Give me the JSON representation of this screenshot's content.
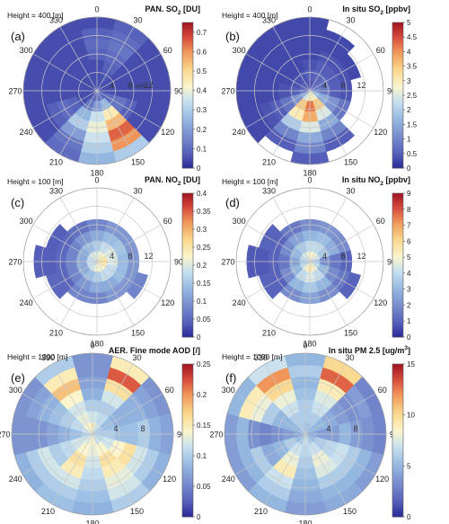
{
  "chart_data": [
    {
      "panel": "(a)",
      "type": "polar-contour",
      "height_label": "Height = 400 [m]",
      "colorbar": {
        "title_main": "PAN. SO",
        "title_sub": "2",
        "title_unit": " [DU]",
        "ticks": [
          0,
          0.1,
          0.2,
          0.3,
          0.4,
          0.5,
          0.6,
          0.7
        ],
        "max": 0.75
      },
      "angle_ticks": [
        0,
        30,
        60,
        90,
        120,
        150,
        180,
        210,
        240,
        270,
        300,
        330
      ],
      "radius_ticks": [
        "4",
        "8",
        "12"
      ],
      "radius_unit": "m/s",
      "radial_max": 14,
      "field": [
        {
          "theta": 0,
          "r": [
            0.05,
            0.05,
            0.05,
            0.08,
            0.1,
            0.08,
            0.05
          ]
        },
        {
          "theta": 30,
          "r": [
            0.05,
            0.06,
            0.08,
            0.1,
            0.12,
            0.1,
            0.08
          ]
        },
        {
          "theta": 60,
          "r": [
            0.05,
            0.05,
            0.05,
            0.05,
            0.05,
            0.05,
            0.05
          ]
        },
        {
          "theta": 90,
          "r": [
            0.05,
            0.05,
            0.05,
            0.05,
            0.05,
            0.05,
            0.05
          ]
        },
        {
          "theta": 120,
          "r": [
            0.08,
            0.1,
            0.12,
            0.08,
            0.05,
            0.05,
            0.05
          ]
        },
        {
          "theta": 150,
          "r": [
            0.1,
            0.25,
            0.45,
            0.55,
            0.65,
            0.6,
            0.3
          ]
        },
        {
          "theta": 180,
          "r": [
            0.12,
            0.2,
            0.35,
            0.4,
            0.35,
            0.3,
            0.25
          ]
        },
        {
          "theta": 210,
          "r": [
            0.08,
            0.12,
            0.25,
            0.3,
            0.2,
            0.12,
            0.1
          ]
        },
        {
          "theta": 240,
          "r": [
            0.05,
            0.05,
            0.08,
            0.1,
            0.08,
            0.05,
            0.05
          ]
        },
        {
          "theta": 270,
          "r": [
            0.05,
            0.05,
            0.05,
            0.05,
            0.05,
            0.05,
            0.05
          ]
        },
        {
          "theta": 300,
          "r": [
            0.05,
            0.05,
            0.05,
            0.05,
            0.05,
            0.05,
            0.05
          ]
        },
        {
          "theta": 330,
          "r": [
            0.05,
            0.05,
            0.05,
            0.05,
            0.05,
            0.05,
            0.05
          ]
        }
      ]
    },
    {
      "panel": "(b)",
      "type": "polar-contour",
      "height_label": "Height = 400 [m]",
      "colorbar": {
        "title_main": "In situ SO",
        "title_sub": "2",
        "title_unit": " [ppbv]",
        "ticks": [
          0,
          0.5,
          1,
          1.5,
          2,
          2.5,
          3,
          3.5,
          4,
          4.5,
          5
        ],
        "max": 5
      },
      "angle_ticks": [
        0,
        30,
        60,
        90,
        120,
        150,
        180,
        210,
        240,
        270,
        300,
        330
      ],
      "radius_ticks": [
        "4",
        "8",
        "12"
      ],
      "radius_unit": "",
      "radial_max": 14,
      "field": [
        {
          "theta": 0,
          "r": [
            0.4,
            0.5,
            0.4,
            0.3,
            0.3,
            0.3,
            0.3
          ]
        },
        {
          "theta": 30,
          "r": [
            0.5,
            0.6,
            0.5,
            0.4,
            0.3,
            0.3,
            null
          ]
        },
        {
          "theta": 60,
          "r": [
            0.8,
            0.7,
            0.5,
            0.4,
            0.3,
            null,
            null
          ]
        },
        {
          "theta": 90,
          "r": [
            1.0,
            0.8,
            0.5,
            0.4,
            null,
            null,
            null
          ]
        },
        {
          "theta": 120,
          "r": [
            1.8,
            1.5,
            1.2,
            0.8,
            null,
            null,
            null
          ]
        },
        {
          "theta": 150,
          "r": [
            2.8,
            3.5,
            2.5,
            1.5,
            1.0,
            0.5,
            null
          ]
        },
        {
          "theta": 180,
          "r": [
            3.0,
            4.2,
            3.8,
            2.5,
            1.5,
            1.0,
            0.5
          ]
        },
        {
          "theta": 210,
          "r": [
            2.5,
            3.5,
            3.0,
            2.0,
            1.0,
            0.5,
            null
          ]
        },
        {
          "theta": 240,
          "r": [
            1.5,
            1.2,
            0.8,
            0.5,
            0.4,
            0.3,
            0.3
          ]
        },
        {
          "theta": 270,
          "r": [
            0.8,
            0.5,
            0.4,
            0.3,
            0.3,
            0.3,
            0.3
          ]
        },
        {
          "theta": 300,
          "r": [
            0.6,
            0.4,
            0.3,
            0.3,
            0.3,
            0.3,
            0.3
          ]
        },
        {
          "theta": 330,
          "r": [
            0.5,
            0.4,
            0.3,
            0.3,
            0.3,
            0.3,
            0.3
          ]
        }
      ]
    },
    {
      "panel": "(c)",
      "type": "polar-contour",
      "height_label": "Height = 100 [m]",
      "colorbar": {
        "title_main": "PAN. NO",
        "title_sub": "2",
        "title_unit": " [DU]",
        "ticks": [
          0,
          0.05,
          0.1,
          0.15,
          0.2,
          0.25,
          0.3,
          0.35,
          0.4
        ],
        "max": 0.4
      },
      "angle_ticks": [
        0,
        30,
        60,
        90,
        120,
        150,
        180,
        210,
        240,
        270,
        300,
        330
      ],
      "radius_ticks": [
        "4",
        "8",
        "12"
      ],
      "radius_unit": "",
      "radial_max": 14,
      "field": [
        {
          "theta": 0,
          "r": [
            0.2,
            0.16,
            0.12,
            0.08,
            null,
            null,
            null
          ]
        },
        {
          "theta": 30,
          "r": [
            0.22,
            0.18,
            0.14,
            0.1,
            null,
            null,
            null
          ]
        },
        {
          "theta": 60,
          "r": [
            0.24,
            0.2,
            0.15,
            0.1,
            null,
            null,
            null
          ]
        },
        {
          "theta": 90,
          "r": [
            0.26,
            0.2,
            0.14,
            0.1,
            null,
            null,
            null
          ]
        },
        {
          "theta": 120,
          "r": [
            0.24,
            0.18,
            0.14,
            0.1,
            0.08,
            null,
            null
          ]
        },
        {
          "theta": 150,
          "r": [
            0.22,
            0.18,
            0.12,
            0.1,
            null,
            null,
            null
          ]
        },
        {
          "theta": 180,
          "r": [
            0.22,
            0.16,
            0.12,
            0.08,
            null,
            null,
            null
          ]
        },
        {
          "theta": 210,
          "r": [
            0.2,
            0.14,
            0.1,
            0.08,
            null,
            null,
            null
          ]
        },
        {
          "theta": 240,
          "r": [
            0.18,
            0.12,
            0.08,
            0.05,
            0.05,
            null,
            null
          ]
        },
        {
          "theta": 270,
          "r": [
            0.18,
            0.12,
            0.08,
            0.05,
            0.04,
            0.04,
            null
          ]
        },
        {
          "theta": 300,
          "r": [
            0.18,
            0.12,
            0.08,
            0.05,
            0.04,
            null,
            null
          ]
        },
        {
          "theta": 330,
          "r": [
            0.2,
            0.14,
            0.1,
            0.06,
            null,
            null,
            null
          ]
        }
      ]
    },
    {
      "panel": "(d)",
      "type": "polar-contour",
      "height_label": "Height = 100 [m]",
      "colorbar": {
        "title_main": "In situ NO",
        "title_sub": "2",
        "title_unit": " [ppbv]",
        "ticks": [
          0,
          1,
          2,
          3,
          4,
          5,
          6,
          7,
          8,
          9
        ],
        "max": 9
      },
      "angle_ticks": [
        0,
        30,
        60,
        90,
        120,
        150,
        180,
        210,
        240,
        270,
        300,
        330
      ],
      "radius_ticks": [
        "4",
        "8",
        "12"
      ],
      "radius_unit": "",
      "radial_max": 14,
      "field": [
        {
          "theta": 0,
          "r": [
            5.0,
            4.0,
            3.0,
            2.0,
            null,
            null,
            null
          ]
        },
        {
          "theta": 30,
          "r": [
            5.0,
            4.0,
            3.2,
            2.2,
            null,
            null,
            null
          ]
        },
        {
          "theta": 60,
          "r": [
            4.5,
            3.5,
            2.8,
            2.0,
            null,
            null,
            null
          ]
        },
        {
          "theta": 90,
          "r": [
            3.5,
            2.0,
            1.5,
            1.0,
            null,
            null,
            null
          ]
        },
        {
          "theta": 120,
          "r": [
            4.0,
            3.0,
            2.0,
            1.5,
            1.0,
            null,
            null
          ]
        },
        {
          "theta": 150,
          "r": [
            5.0,
            4.0,
            3.0,
            2.0,
            null,
            null,
            null
          ]
        },
        {
          "theta": 180,
          "r": [
            5.5,
            4.5,
            3.5,
            2.5,
            null,
            null,
            null
          ]
        },
        {
          "theta": 210,
          "r": [
            5.0,
            4.0,
            3.0,
            2.0,
            null,
            null,
            null
          ]
        },
        {
          "theta": 240,
          "r": [
            4.0,
            3.0,
            2.0,
            1.0,
            1.0,
            null,
            null
          ]
        },
        {
          "theta": 270,
          "r": [
            3.5,
            2.5,
            1.5,
            1.0,
            0.8,
            0.8,
            null
          ]
        },
        {
          "theta": 300,
          "r": [
            4.0,
            3.0,
            2.0,
            1.0,
            1.0,
            null,
            null
          ]
        },
        {
          "theta": 330,
          "r": [
            4.5,
            3.5,
            2.5,
            1.5,
            null,
            null,
            null
          ]
        }
      ]
    },
    {
      "panel": "(e)",
      "type": "polar-contour",
      "height_label": "Height = 1000 [m]",
      "colorbar": {
        "title_main": "AER. Fine mode AOD [/]",
        "title_sub": "",
        "title_unit": "",
        "ticks": [
          0,
          0.05,
          0.1,
          0.15,
          0.2,
          0.25
        ],
        "max": 0.25
      },
      "angle_ticks": [
        0,
        30,
        60,
        90,
        120,
        150,
        180,
        210,
        240,
        270,
        300,
        330
      ],
      "radius_ticks": [
        "4",
        "8"
      ],
      "radius_unit": "",
      "radial_max": 12,
      "field": [
        {
          "theta": 0,
          "r": [
            0.15,
            0.12,
            0.1,
            0.08,
            0.07,
            0.06,
            0.06
          ]
        },
        {
          "theta": 30,
          "r": [
            0.12,
            0.11,
            0.1,
            0.12,
            0.16,
            0.22,
            0.15
          ]
        },
        {
          "theta": 60,
          "r": [
            0.1,
            0.09,
            0.08,
            0.08,
            0.08,
            0.07,
            0.06
          ]
        },
        {
          "theta": 90,
          "r": [
            0.1,
            0.1,
            0.09,
            0.09,
            0.1,
            0.08,
            0.07
          ]
        },
        {
          "theta": 120,
          "r": [
            0.11,
            0.12,
            0.14,
            0.16,
            0.12,
            0.1,
            0.08
          ]
        },
        {
          "theta": 150,
          "r": [
            0.12,
            0.14,
            0.16,
            0.15,
            0.13,
            0.12,
            0.1
          ]
        },
        {
          "theta": 180,
          "r": [
            0.14,
            0.13,
            0.12,
            0.11,
            0.1,
            0.09,
            0.08
          ]
        },
        {
          "theta": 210,
          "r": [
            0.13,
            0.14,
            0.16,
            0.15,
            0.12,
            0.1,
            0.09
          ]
        },
        {
          "theta": 240,
          "r": [
            0.12,
            0.12,
            0.11,
            0.1,
            0.12,
            0.1,
            0.08
          ]
        },
        {
          "theta": 270,
          "r": [
            0.1,
            0.09,
            0.08,
            0.07,
            0.06,
            0.06,
            0.06
          ]
        },
        {
          "theta": 300,
          "r": [
            0.12,
            0.11,
            0.1,
            0.09,
            0.08,
            0.07,
            0.06
          ]
        },
        {
          "theta": 330,
          "r": [
            0.14,
            0.13,
            0.12,
            0.14,
            0.18,
            0.15,
            0.1
          ]
        }
      ]
    },
    {
      "panel": "(f)",
      "type": "polar-contour",
      "height_label": "Height = 1000 [m]",
      "colorbar": {
        "title_main": "In situ PM 2.5 [ug/m",
        "title_sub": "3",
        "title_unit": "]",
        "sub_is_sup": true,
        "ticks": [
          0,
          5,
          10,
          15
        ],
        "max": 15
      },
      "angle_ticks": [
        0,
        30,
        60,
        90,
        120,
        150,
        180,
        210,
        240,
        270,
        300,
        330
      ],
      "radius_ticks": [
        "4",
        "8"
      ],
      "radius_unit": "",
      "radial_max": 12,
      "field": [
        {
          "theta": 0,
          "r": [
            5.5,
            6.0,
            6.0,
            5.5,
            5.0,
            6.0,
            5.0
          ]
        },
        {
          "theta": 30,
          "r": [
            5.5,
            6.0,
            7.0,
            7.5,
            9.0,
            13.0,
            10.0
          ]
        },
        {
          "theta": 60,
          "r": [
            5.0,
            5.0,
            4.5,
            4.0,
            3.5,
            4.0,
            3.0
          ]
        },
        {
          "theta": 90,
          "r": [
            4.5,
            4.0,
            4.0,
            5.0,
            4.0,
            3.5,
            3.0
          ]
        },
        {
          "theta": 120,
          "r": [
            5.0,
            6.0,
            6.5,
            7.0,
            6.0,
            5.0,
            4.0
          ]
        },
        {
          "theta": 150,
          "r": [
            6.0,
            7.0,
            8.0,
            7.5,
            6.0,
            5.0,
            4.5
          ]
        },
        {
          "theta": 180,
          "r": [
            7.0,
            6.5,
            6.0,
            5.5,
            5.0,
            4.5,
            4.0
          ]
        },
        {
          "theta": 210,
          "r": [
            6.0,
            7.0,
            8.0,
            9.0,
            7.0,
            6.0,
            5.0
          ]
        },
        {
          "theta": 240,
          "r": [
            5.0,
            6.0,
            5.0,
            4.5,
            6.0,
            5.0,
            4.0
          ]
        },
        {
          "theta": 270,
          "r": [
            4.5,
            4.0,
            3.5,
            3.0,
            3.5,
            5.0,
            4.0
          ]
        },
        {
          "theta": 300,
          "r": [
            5.0,
            5.0,
            5.0,
            6.0,
            8.0,
            9.0,
            5.0
          ]
        },
        {
          "theta": 330,
          "r": [
            6.0,
            6.0,
            7.0,
            8.0,
            10.0,
            12.0,
            7.0
          ]
        }
      ]
    }
  ]
}
